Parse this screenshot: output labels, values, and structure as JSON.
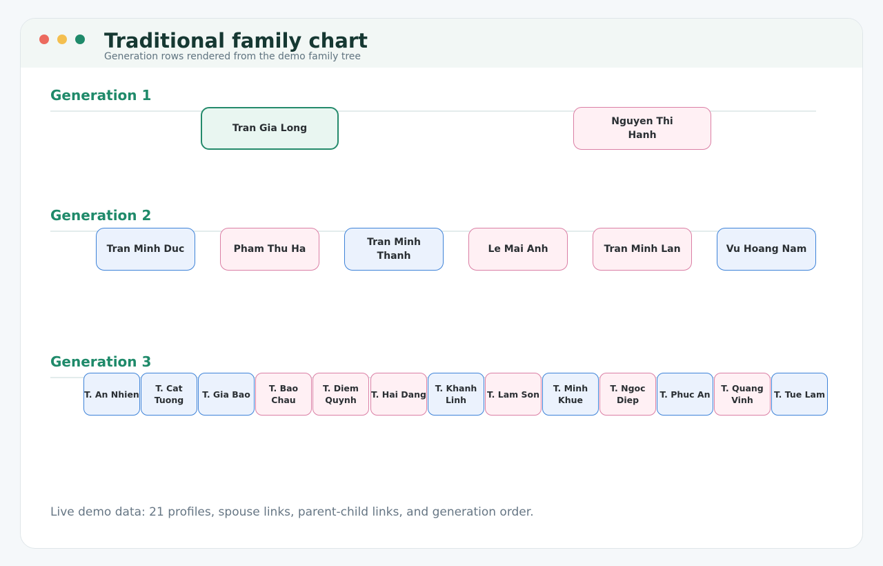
{
  "header": {
    "title": "Traditional family chart",
    "subtitle": "Generation rows rendered from the demo family tree"
  },
  "generations": [
    {
      "label": "Generation 1",
      "members": [
        {
          "name": "Tran Gia Long",
          "gender": "male",
          "root": true
        },
        {
          "name": "Nguyen Thi Hanh",
          "gender": "female"
        }
      ]
    },
    {
      "label": "Generation 2",
      "members": [
        {
          "name": "Tran Minh Duc",
          "gender": "male"
        },
        {
          "name": "Pham Thu Ha",
          "gender": "female"
        },
        {
          "name": "Tran Minh Thanh",
          "gender": "male"
        },
        {
          "name": "Le Mai Anh",
          "gender": "female"
        },
        {
          "name": "Tran Minh Lan",
          "gender": "female"
        },
        {
          "name": "Vu Hoang Nam",
          "gender": "male"
        }
      ]
    },
    {
      "label": "Generation 3",
      "members": [
        {
          "name": "T. An Nhien",
          "gender": "male"
        },
        {
          "name": "T. Cat Tuong",
          "gender": "male"
        },
        {
          "name": "T. Gia Bao",
          "gender": "male"
        },
        {
          "name": "T. Bao Chau",
          "gender": "female"
        },
        {
          "name": "T. Diem Quynh",
          "gender": "female"
        },
        {
          "name": "T. Hai Dang",
          "gender": "female"
        },
        {
          "name": "T. Khanh Linh",
          "gender": "male"
        },
        {
          "name": "T. Lam Son",
          "gender": "female"
        },
        {
          "name": "T. Minh Khue",
          "gender": "male"
        },
        {
          "name": "T. Ngoc Diep",
          "gender": "female"
        },
        {
          "name": "T. Phuc An",
          "gender": "male"
        },
        {
          "name": "T. Quang Vinh",
          "gender": "female"
        },
        {
          "name": "T. Tue Lam",
          "gender": "male"
        }
      ]
    }
  ],
  "footer": {
    "text": "Live demo data: 21 profiles, spouse links, parent-child links, and generation order."
  },
  "colors": {
    "accent": "#1f8a6a",
    "male_fill": "#ebf2fd",
    "male_border": "#3d82d8",
    "female_fill": "#fff0f4",
    "female_border": "#da7ea4"
  }
}
